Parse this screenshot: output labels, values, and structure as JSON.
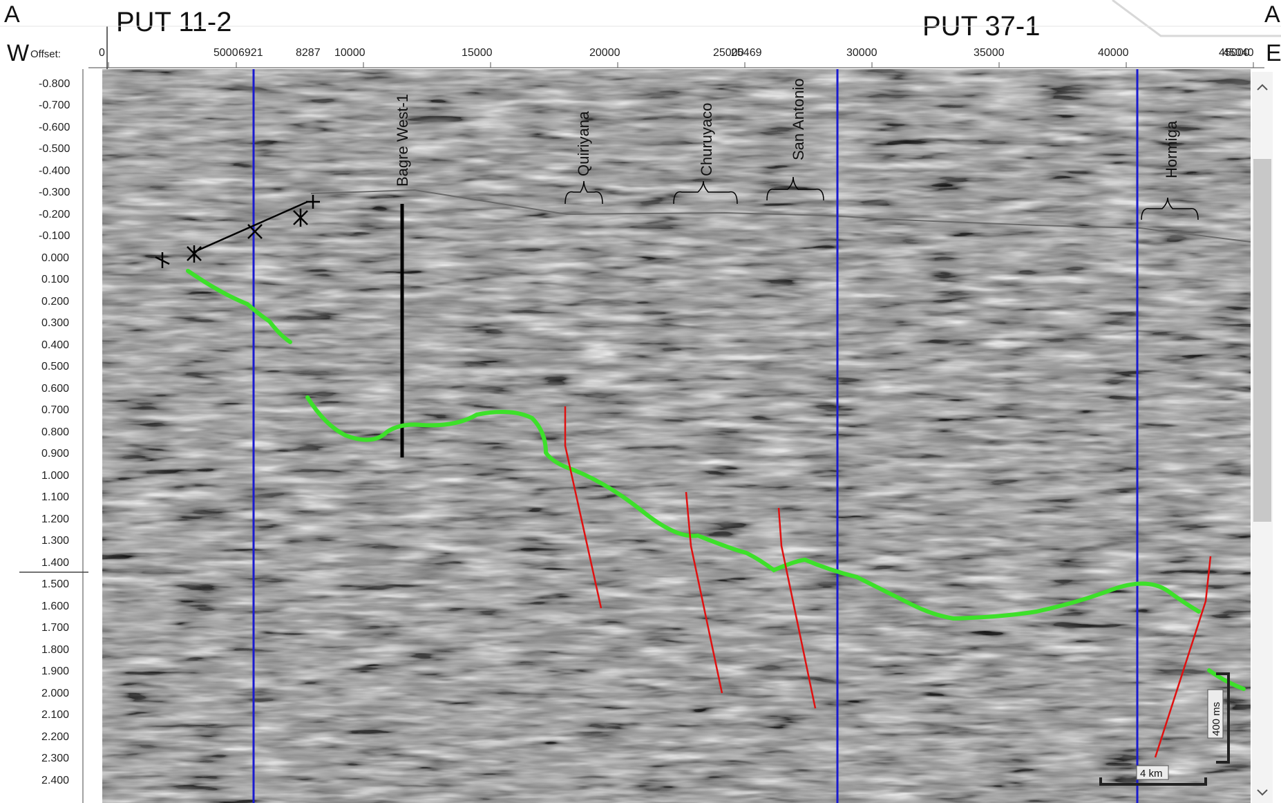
{
  "corners": {
    "top_left": "A",
    "left_below": "W",
    "top_right": "A'",
    "right_below": "E"
  },
  "well_titles": [
    "PUT 11-2",
    "PUT 37-1"
  ],
  "offset_axis": {
    "label": "Offset:",
    "ticks": [
      "0",
      "5000",
      "6921",
      "8287",
      "10000",
      "15000",
      "20000",
      "25000",
      "25469",
      "30000",
      "35000",
      "40000",
      "45000",
      "45040"
    ]
  },
  "time_axis": {
    "ticks": [
      "-0.800",
      "-0.700",
      "-0.600",
      "-0.500",
      "-0.400",
      "-0.300",
      "-0.200",
      "-0.100",
      "0.000",
      "0.100",
      "0.200",
      "0.300",
      "0.400",
      "0.500",
      "0.600",
      "0.700",
      "0.800",
      "0.900",
      "1.000",
      "1.100",
      "1.200",
      "1.300",
      "1.400",
      "1.500",
      "1.600",
      "1.700",
      "1.800",
      "1.900",
      "2.000",
      "2.100",
      "2.200",
      "2.300",
      "2.400"
    ]
  },
  "structures": [
    "Bagre West-1",
    "Quiriyana",
    "Churuyaco",
    "San Antonio",
    "Hormiga"
  ],
  "scale_bars": {
    "horizontal": "4 km",
    "vertical": "400 ms"
  },
  "colors": {
    "horizon": "#3de02a",
    "faults": "#e01010",
    "well_lines": "#1a1ad0",
    "background": "#8a8a8a"
  }
}
